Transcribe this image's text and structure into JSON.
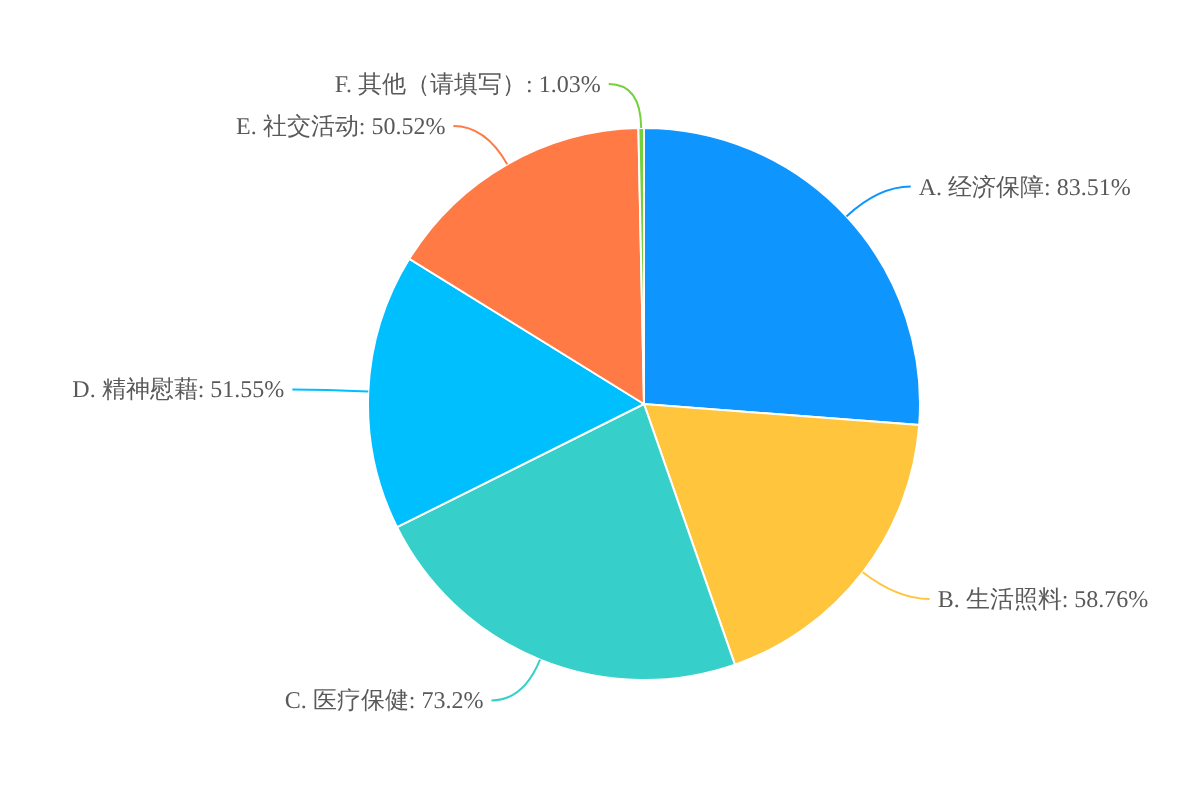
{
  "chart_data": {
    "type": "pie",
    "categories": [
      "A. 经济保障",
      "B. 生活照料",
      "C. 医疗保健",
      "D. 精神慰藉",
      "E. 社交活动",
      "F. 其他（请填写）"
    ],
    "values": [
      83.51,
      58.76,
      73.2,
      51.55,
      50.52,
      1.03
    ],
    "value_labels": [
      "83.51%",
      "58.76%",
      "73.2%",
      "51.55%",
      "50.52%",
      "1.03%"
    ],
    "colors": [
      "#0e96fe",
      "#ffc53d",
      "#36cfc9",
      "#00bfff",
      "#ff7a45",
      "#73d13d"
    ],
    "legend": false
  }
}
